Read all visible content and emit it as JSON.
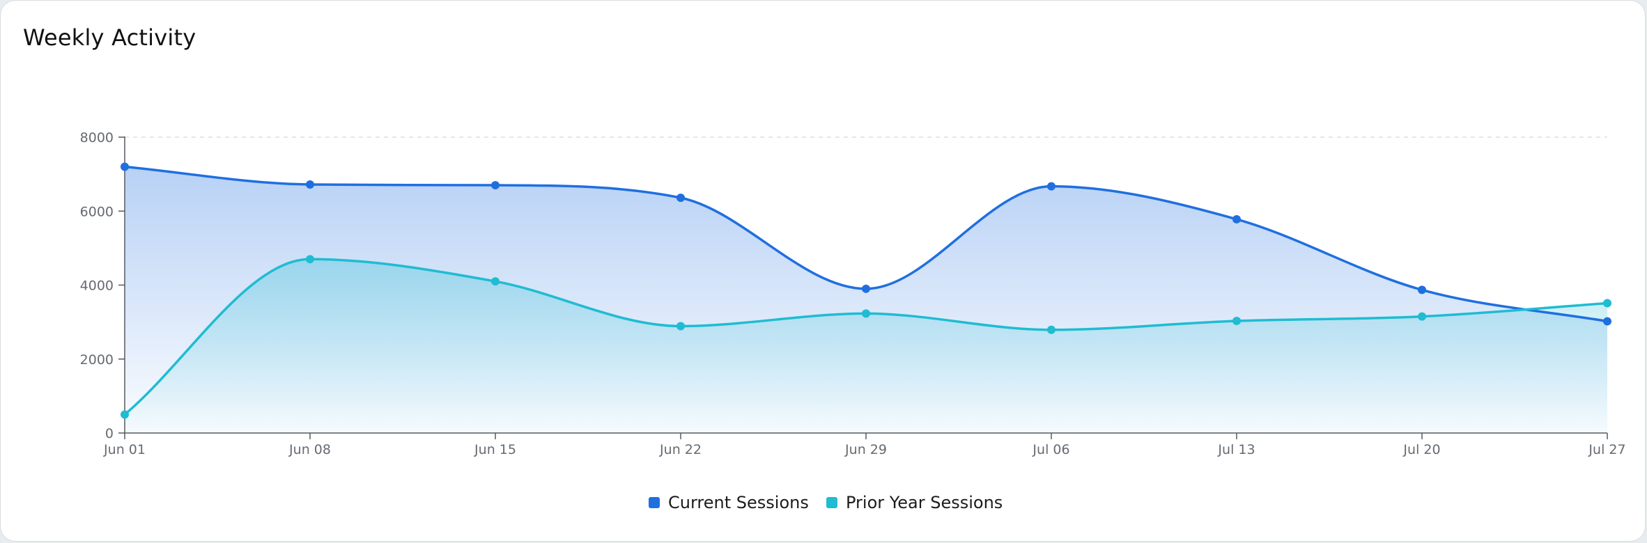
{
  "card": {
    "title": "Weekly Activity"
  },
  "chart_data": {
    "type": "area",
    "title": "Weekly Activity",
    "x": [
      "Jun 01",
      "Jun 08",
      "Jun 15",
      "Jun 22",
      "Jun 29",
      "Jul 06",
      "Jul 13",
      "Jul 20",
      "Jul 27"
    ],
    "series": [
      {
        "name": "Current Sessions",
        "color": "#1f6fe0",
        "values": [
          7200,
          6720,
          6700,
          6360,
          3900,
          6670,
          5780,
          3870,
          3020
        ]
      },
      {
        "name": "Prior Year Sessions",
        "color": "#1fbcd2",
        "values": [
          500,
          4700,
          4100,
          2890,
          3230,
          2790,
          3030,
          3150,
          3510
        ]
      }
    ],
    "yticks": [
      "0",
      "2000",
      "4000",
      "6000",
      "8000"
    ],
    "ylim": [
      0,
      8000
    ],
    "grid": "dashed line at top of y-axis only",
    "legend_position": "bottom-center",
    "xlabel": "",
    "ylabel": ""
  }
}
